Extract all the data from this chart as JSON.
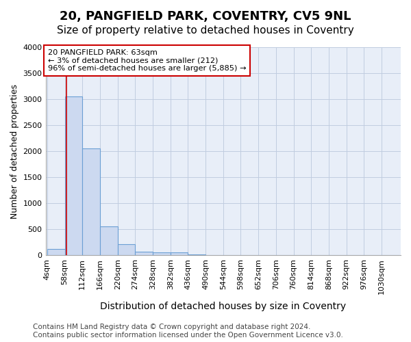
{
  "title_line1": "20, PANGFIELD PARK, COVENTRY, CV5 9NL",
  "title_line2": "Size of property relative to detached houses in Coventry",
  "xlabel": "Distribution of detached houses by size in Coventry",
  "ylabel": "Number of detached properties",
  "footer_line1": "Contains HM Land Registry data © Crown copyright and database right 2024.",
  "footer_line2": "Contains public sector information licensed under the Open Government Licence v3.0.",
  "bar_edges": [
    4,
    58,
    112,
    166,
    220,
    274,
    328,
    382,
    436,
    490,
    544,
    598,
    652,
    706,
    760,
    814,
    868,
    922,
    976,
    1030,
    1084
  ],
  "bar_heights": [
    125,
    3050,
    2050,
    550,
    210,
    75,
    55,
    60,
    20,
    5,
    3,
    2,
    1,
    1,
    1,
    0,
    0,
    0,
    0,
    0
  ],
  "bar_color": "#ccd9f0",
  "bar_edge_color": "#6b9fd4",
  "bar_linewidth": 0.8,
  "property_size": 63,
  "property_line_color": "#cc0000",
  "annotation_line1": "20 PANGFIELD PARK: 63sqm",
  "annotation_line2": "← 3% of detached houses are smaller (212)",
  "annotation_line3": "96% of semi-detached houses are larger (5,885) →",
  "annotation_box_color": "#ffffff",
  "annotation_box_edge": "#cc0000",
  "ylim": [
    0,
    4000
  ],
  "yticks": [
    0,
    500,
    1000,
    1500,
    2000,
    2500,
    3000,
    3500,
    4000
  ],
  "grid_color": "#c0cce0",
  "background_color": "#e8eef8",
  "title1_fontsize": 13,
  "title2_fontsize": 11,
  "xlabel_fontsize": 10,
  "ylabel_fontsize": 9,
  "tick_fontsize": 8,
  "footer_fontsize": 7.5
}
